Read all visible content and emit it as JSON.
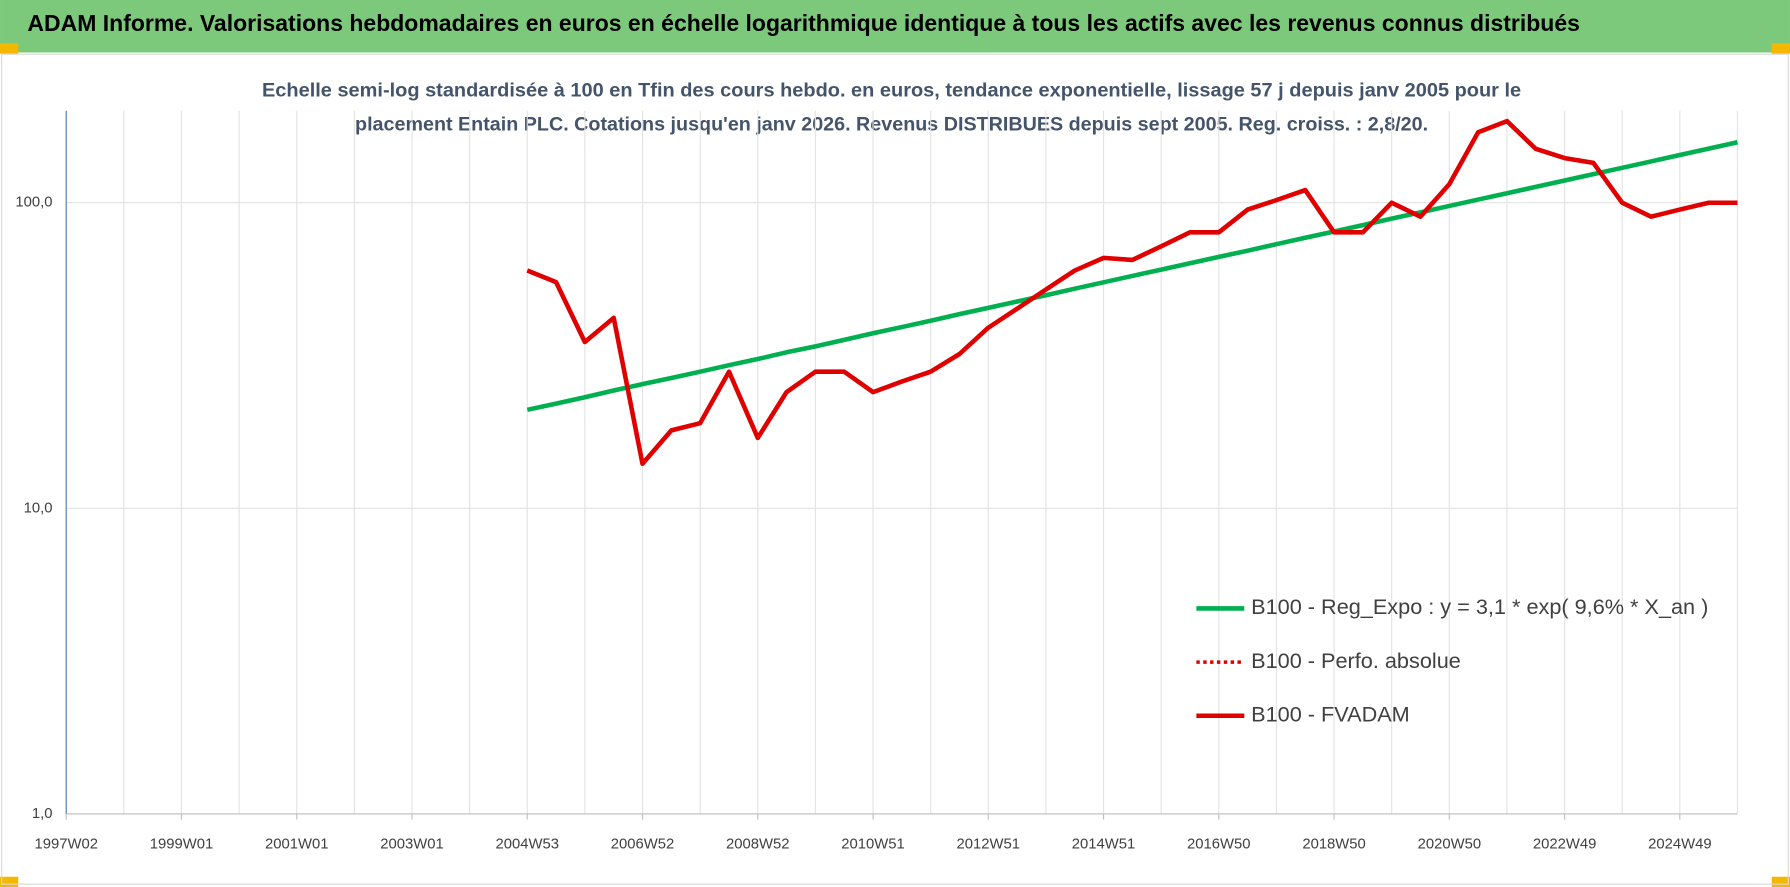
{
  "chart_data": {
    "type": "line",
    "title": "ADAM Informe. Valorisations hebdomadaires en euros en échelle logarithmique identique à tous les actifs avec les revenus connus distribués",
    "subtitle": [
      "Echelle semi-log standardisée à 100 en Tfin des cours hebdo. en euros, tendance exponentielle, lissage 57 j depuis janv 2005 pour le",
      "placement Entain PLC. Cotations jusqu'en janv 2026. Revenus DISTRIBUES depuis sept 2005. Reg. croiss. : 2,8/20."
    ],
    "categories": [
      "1997W02",
      null,
      null,
      null,
      "1999W01",
      null,
      null,
      null,
      "2001W01",
      null,
      null,
      null,
      "2003W01",
      null,
      null,
      null,
      "2004W53",
      null,
      null,
      null,
      "2006W52",
      null,
      null,
      null,
      "2008W52",
      null,
      null,
      null,
      "2010W51",
      null,
      null,
      null,
      "2012W51",
      null,
      null,
      null,
      "2014W51",
      null,
      null,
      null,
      "2016W50",
      null,
      null,
      null,
      "2018W50",
      null,
      null,
      null,
      "2020W50",
      null,
      null,
      null,
      "2022W49",
      null,
      null,
      null,
      "2024W49",
      null,
      null
    ],
    "series": [
      {
        "name": "B100 - Reg_Expo : y = 3,1 * exp( 9,6% *  X_an )",
        "color": "#00b050",
        "dashed": false,
        "values": [
          null,
          null,
          null,
          null,
          null,
          null,
          null,
          null,
          null,
          null,
          null,
          null,
          null,
          null,
          null,
          null,
          21.0,
          22.0,
          23.1,
          24.3,
          25.5,
          26.7,
          28.0,
          29.4,
          30.8,
          32.4,
          33.9,
          35.6,
          37.4,
          39.2,
          41.1,
          43.2,
          45.3,
          47.5,
          49.8,
          52.3,
          54.9,
          57.6,
          60.4,
          63.4,
          66.5,
          69.7,
          73.2,
          76.8,
          80.5,
          84.5,
          88.7,
          93.0,
          97.6,
          102.4,
          107.4,
          112.7,
          118.2,
          124.1,
          130.1,
          136.5,
          143.3,
          150.3,
          157.7
        ]
      },
      {
        "name": "B100 - Perfo. absolue",
        "color": "#e00000",
        "dashed": true,
        "values": [
          null,
          null,
          null,
          null,
          null,
          null,
          null,
          null,
          null,
          null,
          null,
          null,
          null,
          null,
          null,
          null,
          60,
          55,
          35,
          42,
          14,
          18,
          19,
          28,
          17,
          24,
          28,
          28,
          24,
          26,
          28,
          32,
          39,
          45,
          52,
          60,
          66,
          65,
          72,
          80,
          80,
          95,
          102,
          110,
          80,
          80,
          100,
          90,
          115,
          170,
          185,
          150,
          140,
          135,
          100,
          90,
          95,
          100,
          100
        ]
      },
      {
        "name": "B100 - FVADAM",
        "color": "#e00000",
        "dashed": false,
        "values": [
          null,
          null,
          null,
          null,
          null,
          null,
          null,
          null,
          null,
          null,
          null,
          null,
          null,
          null,
          null,
          null,
          60,
          55,
          35,
          42,
          14,
          18,
          19,
          28,
          17,
          24,
          28,
          28,
          24,
          26,
          28,
          32,
          39,
          45,
          52,
          60,
          66,
          65,
          72,
          80,
          80,
          95,
          102,
          110,
          80,
          80,
          100,
          90,
          115,
          170,
          185,
          150,
          140,
          135,
          100,
          90,
          95,
          100,
          100
        ]
      }
    ],
    "ylog": true,
    "ylim": [
      1,
      200
    ],
    "yticks": [
      {
        "value": 1,
        "label": "1,0"
      },
      {
        "value": 10,
        "label": "10,0"
      },
      {
        "value": 100,
        "label": "100,0"
      }
    ],
    "grid": true
  }
}
